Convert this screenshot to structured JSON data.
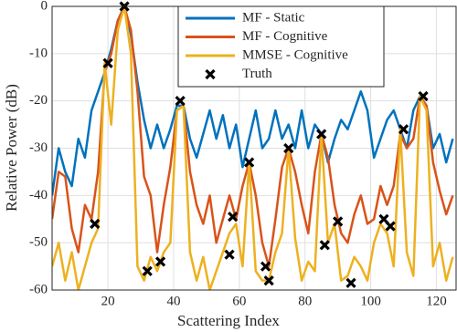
{
  "chart_data": {
    "type": "line",
    "x_label": "Scattering Index",
    "y_label": "Relative Power (dB)",
    "xlim": [
      3,
      126
    ],
    "ylim": [
      -60,
      0
    ],
    "xticks": [
      20,
      40,
      60,
      80,
      100,
      120
    ],
    "yticks": [
      -60,
      -50,
      -40,
      -30,
      -20,
      -10,
      0
    ],
    "grid": true,
    "legend": "upper right",
    "x": [
      3,
      5,
      7,
      9,
      11,
      13,
      15,
      17,
      19,
      21,
      23,
      25,
      27,
      29,
      31,
      33,
      35,
      37,
      39,
      41,
      43,
      45,
      47,
      49,
      51,
      53,
      55,
      57,
      59,
      61,
      63,
      65,
      67,
      69,
      71,
      73,
      75,
      77,
      79,
      81,
      83,
      85,
      87,
      89,
      91,
      93,
      95,
      97,
      99,
      101,
      103,
      105,
      107,
      109,
      111,
      113,
      115,
      117,
      119,
      121,
      123,
      125
    ],
    "series": [
      {
        "name": "MF - Static",
        "color": "#0072BD",
        "values": [
          -40,
          -30,
          -35,
          -38,
          -28,
          -32,
          -22,
          -18,
          -14,
          -9,
          -3,
          0,
          -6,
          -16,
          -24,
          -30,
          -25,
          -30,
          -26,
          -21,
          -21,
          -28,
          -32,
          -27,
          -22,
          -28,
          -23,
          -30,
          -25,
          -34,
          -28,
          -22,
          -30,
          -28,
          -22,
          -28,
          -25,
          -30,
          -22,
          -30,
          -25,
          -27,
          -33,
          -28,
          -24,
          -26,
          -22,
          -18,
          -22,
          -32,
          -28,
          -24,
          -22,
          -26,
          -30,
          -22,
          -19,
          -21,
          -30,
          -27,
          -33,
          -28
        ]
      },
      {
        "name": "MF - Cognitive",
        "color": "#D95319",
        "values": [
          -45,
          -35,
          -36,
          -47,
          -52,
          -42,
          -45,
          -35,
          -14,
          -10,
          -3,
          0,
          -5,
          -18,
          -36,
          -40,
          -52,
          -42,
          -34,
          -22,
          -21,
          -35,
          -42,
          -46,
          -40,
          -50,
          -45,
          -40,
          -45,
          -38,
          -33,
          -40,
          -50,
          -55,
          -45,
          -34,
          -30,
          -35,
          -42,
          -48,
          -35,
          -27,
          -32,
          -42,
          -48,
          -50,
          -44,
          -40,
          -46,
          -45,
          -38,
          -42,
          -38,
          -27,
          -30,
          -28,
          -19,
          -21,
          -33,
          -39,
          -44,
          -40
        ]
      },
      {
        "name": "MMSE - Cognitive",
        "color": "#EDB120",
        "values": [
          -55,
          -50,
          -58,
          -52,
          -60,
          -55,
          -50,
          -47,
          -12,
          -25,
          -5,
          0,
          -10,
          -55,
          -58,
          -53,
          -56,
          -52,
          -50,
          -22,
          -21,
          -52,
          -58,
          -53,
          -60,
          -56,
          -52,
          -48,
          -46,
          -55,
          -33,
          -56,
          -58,
          -58,
          -52,
          -48,
          -30,
          -49,
          -58,
          -54,
          -56,
          -27,
          -50,
          -46,
          -58,
          -57,
          -53,
          -55,
          -58,
          -50,
          -46,
          -48,
          -55,
          -26,
          -52,
          -57,
          -19,
          -22,
          -55,
          -50,
          -58,
          -53
        ]
      },
      {
        "name": "Truth",
        "type": "scatter",
        "color": "#000000",
        "x": [
          16,
          20,
          25,
          32,
          36,
          42,
          57,
          58,
          63,
          68,
          69,
          75,
          85,
          86,
          90,
          94,
          104,
          106,
          110,
          116
        ],
        "values": [
          -46,
          -12,
          0,
          -56,
          -54,
          -20,
          -52.5,
          -44.5,
          -33,
          -55,
          -58,
          -30,
          -27,
          -50.5,
          -45.5,
          -58.5,
          -45,
          -46.5,
          -26,
          -19
        ]
      }
    ]
  }
}
